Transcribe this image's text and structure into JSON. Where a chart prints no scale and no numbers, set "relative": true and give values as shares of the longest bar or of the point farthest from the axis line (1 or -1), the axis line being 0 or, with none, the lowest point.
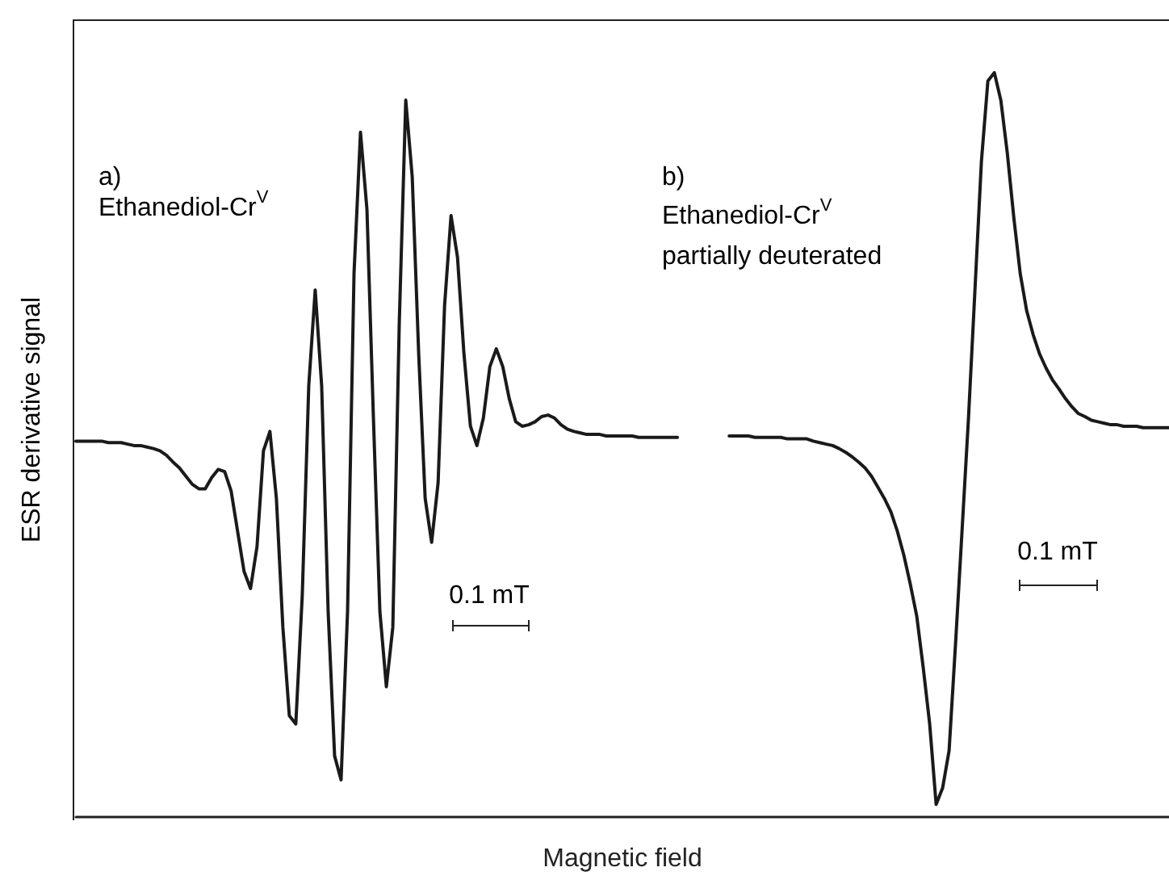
{
  "chart_data": {
    "type": "line",
    "relative": true,
    "xlabel": "Magnetic field",
    "ylabel": "ESR derivative signal",
    "annotations": [
      "a)",
      "Ethanediol-Cr$^{V}$",
      "b)",
      "Ethanediol-Cr$^{V}$",
      "partially deuterated",
      "0.1 mT",
      "0.1 mT"
    ],
    "categories": [
      null,
      null,
      null,
      null,
      null,
      null,
      null,
      null,
      null,
      null,
      null,
      null,
      null,
      null,
      null,
      null,
      null,
      null,
      null,
      null,
      null,
      null,
      null,
      null,
      null,
      null,
      null,
      null,
      null,
      null,
      null,
      null,
      null,
      null,
      null,
      null,
      null,
      null,
      null,
      null,
      null,
      null,
      null,
      null,
      null,
      null,
      null,
      null,
      null,
      null,
      null,
      null,
      null,
      null,
      null,
      null,
      null,
      null,
      null,
      null,
      null,
      null,
      null,
      null,
      null,
      null,
      null,
      null,
      null,
      null,
      null,
      null,
      null,
      null,
      null,
      null,
      null,
      null,
      null,
      null,
      null,
      null,
      null,
      null,
      null,
      null,
      null,
      null,
      null,
      null,
      null,
      null,
      null,
      null,
      null,
      null,
      null,
      null,
      null,
      null,
      null,
      null,
      null,
      null,
      null,
      null,
      null,
      null,
      null,
      null,
      null,
      null,
      null,
      null,
      null,
      null,
      null,
      null,
      null,
      null,
      null,
      null,
      null,
      null,
      null,
      null,
      null,
      null,
      null,
      null,
      null,
      null,
      null,
      null,
      null,
      null,
      null,
      null,
      null,
      null,
      null,
      null,
      null,
      null,
      null,
      null,
      null,
      null,
      null,
      null,
      null,
      null,
      null,
      null,
      null,
      null,
      null,
      null,
      null,
      null,
      null,
      null,
      null,
      null,
      null,
      null,
      null,
      null,
      null,
      null
    ],
    "series": [
      {
        "color": "#1a1a1a",
        "values": [
          0.505,
          0.505,
          0.505,
          0.505,
          0.505,
          0.503,
          0.503,
          0.503,
          0.501,
          0.499,
          0.499,
          0.497,
          0.495,
          0.492,
          0.486,
          0.477,
          0.469,
          0.458,
          0.447,
          0.441,
          0.441,
          0.456,
          0.467,
          0.464,
          0.438,
          0.384,
          0.33,
          0.307,
          0.363,
          0.492,
          0.518,
          0.428,
          0.255,
          0.136,
          0.125,
          0.298,
          0.579,
          0.708,
          0.579,
          0.276,
          0.082,
          0.05,
          0.276,
          0.73,
          0.92,
          0.816,
          0.536,
          0.276,
          0.175,
          0.255,
          0.665,
          0.963,
          0.86,
          0.622,
          0.428,
          0.369,
          0.449,
          0.687,
          0.808,
          0.752,
          0.622,
          0.525,
          0.499,
          0.536,
          0.605,
          0.629,
          0.605,
          0.562,
          0.531,
          0.525,
          0.527,
          0.531,
          0.538,
          0.54,
          0.536,
          0.527,
          0.521,
          0.518,
          0.516,
          0.514,
          0.514,
          0.514,
          0.512,
          0.512,
          0.512,
          0.512,
          0.512,
          0.51,
          0.51,
          0.51,
          0.51,
          0.51,
          0.51,
          0.51,
          null,
          null,
          null,
          null,
          null,
          null,
          null,
          null,
          null,
          null,
          null,
          null,
          null,
          null,
          null,
          null,
          null,
          null,
          null,
          null,
          null,
          null,
          null,
          null,
          null,
          null,
          null,
          null,
          null,
          null,
          null,
          null,
          null,
          null,
          null,
          null,
          null,
          null,
          null,
          null,
          null,
          null,
          null,
          null,
          null,
          null,
          null,
          null,
          null,
          null,
          null,
          null,
          null,
          null,
          null,
          null,
          null,
          null,
          null,
          null,
          null,
          null,
          null,
          null,
          null,
          null,
          null,
          null,
          null,
          null,
          null,
          null,
          null,
          null,
          null,
          null
        ]
      },
      {
        "color": "#1a1a1a",
        "values": [
          null,
          null,
          null,
          null,
          null,
          null,
          null,
          null,
          null,
          null,
          null,
          null,
          null,
          null,
          null,
          null,
          null,
          null,
          null,
          null,
          null,
          null,
          null,
          null,
          null,
          null,
          null,
          null,
          null,
          null,
          null,
          null,
          null,
          null,
          null,
          null,
          null,
          null,
          null,
          null,
          null,
          null,
          null,
          null,
          null,
          null,
          null,
          null,
          null,
          null,
          null,
          null,
          null,
          null,
          null,
          null,
          null,
          null,
          null,
          null,
          null,
          null,
          null,
          null,
          null,
          null,
          null,
          null,
          null,
          null,
          null,
          null,
          null,
          null,
          null,
          null,
          null,
          null,
          null,
          null,
          null,
          null,
          null,
          null,
          null,
          null,
          null,
          null,
          null,
          null,
          null,
          null,
          null,
          null,
          null,
          null,
          null,
          null,
          null,
          null,
          null,
          0.512,
          0.512,
          0.512,
          0.512,
          0.51,
          0.51,
          0.51,
          0.51,
          0.51,
          0.508,
          0.508,
          0.508,
          0.508,
          0.505,
          0.503,
          0.501,
          0.499,
          0.495,
          0.49,
          0.484,
          0.477,
          0.469,
          0.458,
          0.443,
          0.428,
          0.41,
          0.384,
          0.352,
          0.313,
          0.27,
          0.201,
          0.125,
          0.017,
          0.039,
          0.089,
          0.233,
          0.384,
          0.536,
          0.708,
          0.881,
          0.989,
          1.0,
          0.963,
          0.892,
          0.806,
          0.73,
          0.68,
          0.648,
          0.622,
          0.603,
          0.587,
          0.575,
          0.562,
          0.551,
          0.542,
          0.538,
          0.533,
          0.531,
          0.529,
          0.527,
          0.527,
          0.525,
          0.525,
          0.525,
          0.523,
          0.523,
          0.523,
          0.523,
          0.523
        ]
      }
    ],
    "line_style": "solid",
    "tick_labels": false
  }
}
